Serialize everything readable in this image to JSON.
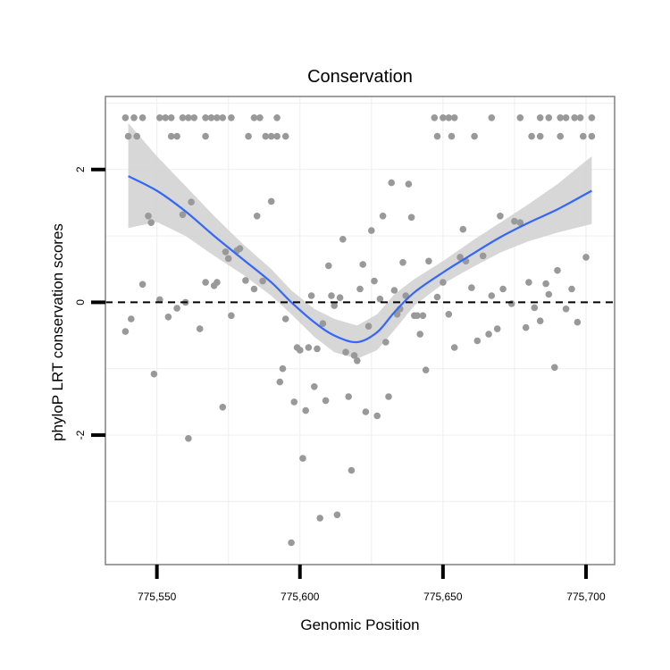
{
  "chart_data": {
    "type": "scatter",
    "title": "Conservation",
    "xlabel": "Genomic Position",
    "ylabel": "phyloP LRT conservation scores",
    "xlim": [
      775532,
      775710
    ],
    "ylim": [
      -3.95,
      3.1
    ],
    "x_ticks": [
      775550,
      775600,
      775650,
      775700
    ],
    "x_tick_labels": [
      "775,550",
      "775,600",
      "775,650",
      "775,700"
    ],
    "y_ticks": [
      -2,
      0,
      2
    ],
    "y_tick_labels": [
      "-2",
      "0",
      "2"
    ],
    "grid": true,
    "reference_line": {
      "y": 0,
      "style": "dashed"
    },
    "colors": {
      "points": "#999999",
      "smooth_line": "#3366FF",
      "confidence_band": "#d3d3d3",
      "panel_border": "#808080",
      "grid": "#f0f0f0"
    },
    "points": [
      [
        775539,
        2.78
      ],
      [
        775542,
        2.78
      ],
      [
        775545,
        2.78
      ],
      [
        775551,
        2.78
      ],
      [
        775553,
        2.78
      ],
      [
        775555,
        2.78
      ],
      [
        775559,
        2.78
      ],
      [
        775561,
        2.78
      ],
      [
        775563,
        2.78
      ],
      [
        775567,
        2.78
      ],
      [
        775569,
        2.78
      ],
      [
        775571,
        2.78
      ],
      [
        775573,
        2.78
      ],
      [
        775576,
        2.78
      ],
      [
        775584,
        2.78
      ],
      [
        775586,
        2.78
      ],
      [
        775592,
        2.78
      ],
      [
        775540,
        2.5
      ],
      [
        775543,
        2.5
      ],
      [
        775555,
        2.5
      ],
      [
        775557,
        2.5
      ],
      [
        775567,
        2.5
      ],
      [
        775582,
        2.5
      ],
      [
        775588,
        2.5
      ],
      [
        775590,
        2.5
      ],
      [
        775592,
        2.5
      ],
      [
        775595,
        2.5
      ],
      [
        775647,
        2.78
      ],
      [
        775650,
        2.78
      ],
      [
        775652,
        2.78
      ],
      [
        775654,
        2.78
      ],
      [
        775667,
        2.78
      ],
      [
        775677,
        2.78
      ],
      [
        775684,
        2.78
      ],
      [
        775687,
        2.78
      ],
      [
        775691,
        2.78
      ],
      [
        775693,
        2.78
      ],
      [
        775696,
        2.78
      ],
      [
        775698,
        2.78
      ],
      [
        775702,
        2.78
      ],
      [
        775648,
        2.5
      ],
      [
        775653,
        2.5
      ],
      [
        775661,
        2.5
      ],
      [
        775681,
        2.5
      ],
      [
        775684,
        2.5
      ],
      [
        775691,
        2.5
      ],
      [
        775699,
        2.5
      ],
      [
        775702,
        2.5
      ],
      [
        775539,
        -0.44
      ],
      [
        775541,
        -0.25
      ],
      [
        775545,
        0.27
      ],
      [
        775547,
        1.3
      ],
      [
        775548,
        1.2
      ],
      [
        775549,
        -1.08
      ],
      [
        775551,
        0.04
      ],
      [
        775554,
        -0.22
      ],
      [
        775557,
        -0.09
      ],
      [
        775559,
        1.32
      ],
      [
        775560,
        0.0
      ],
      [
        775561,
        -2.05
      ],
      [
        775562,
        1.51
      ],
      [
        775565,
        -0.4
      ],
      [
        775567,
        0.3
      ],
      [
        775570,
        0.25
      ],
      [
        775571,
        0.3
      ],
      [
        775573,
        -1.58
      ],
      [
        775574,
        0.76
      ],
      [
        775575,
        0.66
      ],
      [
        775576,
        -0.2
      ],
      [
        775578,
        0.78
      ],
      [
        775579,
        0.81
      ],
      [
        775581,
        0.33
      ],
      [
        775584,
        0.2
      ],
      [
        775585,
        1.3
      ],
      [
        775587,
        0.32
      ],
      [
        775590,
        1.52
      ],
      [
        775593,
        -1.2
      ],
      [
        775594,
        -1.0
      ],
      [
        775595,
        -0.25
      ],
      [
        775597,
        -3.62
      ],
      [
        775598,
        -1.5
      ],
      [
        775599,
        -0.68
      ],
      [
        775600,
        -0.72
      ],
      [
        775601,
        -2.35
      ],
      [
        775602,
        -1.63
      ],
      [
        775603,
        -0.68
      ],
      [
        775604,
        0.1
      ],
      [
        775605,
        -1.27
      ],
      [
        775606,
        -0.7
      ],
      [
        775607,
        -3.25
      ],
      [
        775608,
        -0.32
      ],
      [
        775609,
        -1.48
      ],
      [
        775610,
        0.55
      ],
      [
        775611,
        0.1
      ],
      [
        775612,
        -0.05
      ],
      [
        775613,
        -3.2
      ],
      [
        775614,
        0.07
      ],
      [
        775615,
        0.95
      ],
      [
        775616,
        -0.75
      ],
      [
        775617,
        -1.42
      ],
      [
        775618,
        -2.53
      ],
      [
        775619,
        -0.8
      ],
      [
        775620,
        -0.88
      ],
      [
        775621,
        0.2
      ],
      [
        775622,
        0.57
      ],
      [
        775623,
        -1.65
      ],
      [
        775624,
        -0.36
      ],
      [
        775625,
        1.08
      ],
      [
        775626,
        0.32
      ],
      [
        775627,
        -1.71
      ],
      [
        775628,
        0.05
      ],
      [
        775629,
        1.3
      ],
      [
        775630,
        -0.6
      ],
      [
        775631,
        -1.42
      ],
      [
        775632,
        1.8
      ],
      [
        775633,
        0.18
      ],
      [
        775634,
        -0.18
      ],
      [
        775635,
        -0.1
      ],
      [
        775636,
        0.6
      ],
      [
        775637,
        0.1
      ],
      [
        775638,
        1.78
      ],
      [
        775639,
        1.28
      ],
      [
        775640,
        -0.2
      ],
      [
        775641,
        -0.2
      ],
      [
        775642,
        -0.48
      ],
      [
        775643,
        -0.2
      ],
      [
        775644,
        -1.02
      ],
      [
        775645,
        0.62
      ],
      [
        775648,
        0.08
      ],
      [
        775650,
        0.3
      ],
      [
        775652,
        -0.18
      ],
      [
        775654,
        -0.68
      ],
      [
        775656,
        0.68
      ],
      [
        775657,
        1.1
      ],
      [
        775658,
        0.62
      ],
      [
        775660,
        0.22
      ],
      [
        775662,
        -0.58
      ],
      [
        775664,
        0.7
      ],
      [
        775666,
        -0.48
      ],
      [
        775667,
        0.1
      ],
      [
        775669,
        -0.4
      ],
      [
        775670,
        1.3
      ],
      [
        775671,
        0.2
      ],
      [
        775674,
        -0.02
      ],
      [
        775675,
        1.22
      ],
      [
        775677,
        1.2
      ],
      [
        775679,
        -0.38
      ],
      [
        775680,
        0.3
      ],
      [
        775682,
        -0.08
      ],
      [
        775684,
        -0.28
      ],
      [
        775686,
        0.28
      ],
      [
        775687,
        0.12
      ],
      [
        775689,
        -0.98
      ],
      [
        775690,
        0.48
      ],
      [
        775693,
        -0.1
      ],
      [
        775695,
        0.2
      ],
      [
        775697,
        -0.3
      ],
      [
        775700,
        0.68
      ]
    ],
    "smooth": {
      "x": [
        775540,
        775550,
        775560,
        775570,
        775580,
        775590,
        775597,
        775605,
        775612,
        775620,
        775627,
        775633,
        775640,
        775650,
        775660,
        775670,
        775680,
        775690,
        775702
      ],
      "y": [
        1.9,
        1.68,
        1.37,
        1.0,
        0.65,
        0.3,
        0.0,
        -0.3,
        -0.5,
        -0.6,
        -0.45,
        -0.15,
        0.15,
        0.45,
        0.72,
        0.98,
        1.2,
        1.4,
        1.68
      ],
      "lower": [
        1.12,
        1.21,
        1.0,
        0.7,
        0.42,
        0.1,
        -0.18,
        -0.52,
        -0.75,
        -0.85,
        -0.72,
        -0.42,
        -0.05,
        0.28,
        0.52,
        0.75,
        0.92,
        1.05,
        1.18
      ],
      "upper": [
        2.7,
        2.2,
        1.75,
        1.3,
        0.88,
        0.5,
        0.18,
        -0.1,
        -0.25,
        -0.35,
        -0.18,
        0.12,
        0.35,
        0.62,
        0.92,
        1.2,
        1.48,
        1.78,
        2.2
      ]
    }
  }
}
